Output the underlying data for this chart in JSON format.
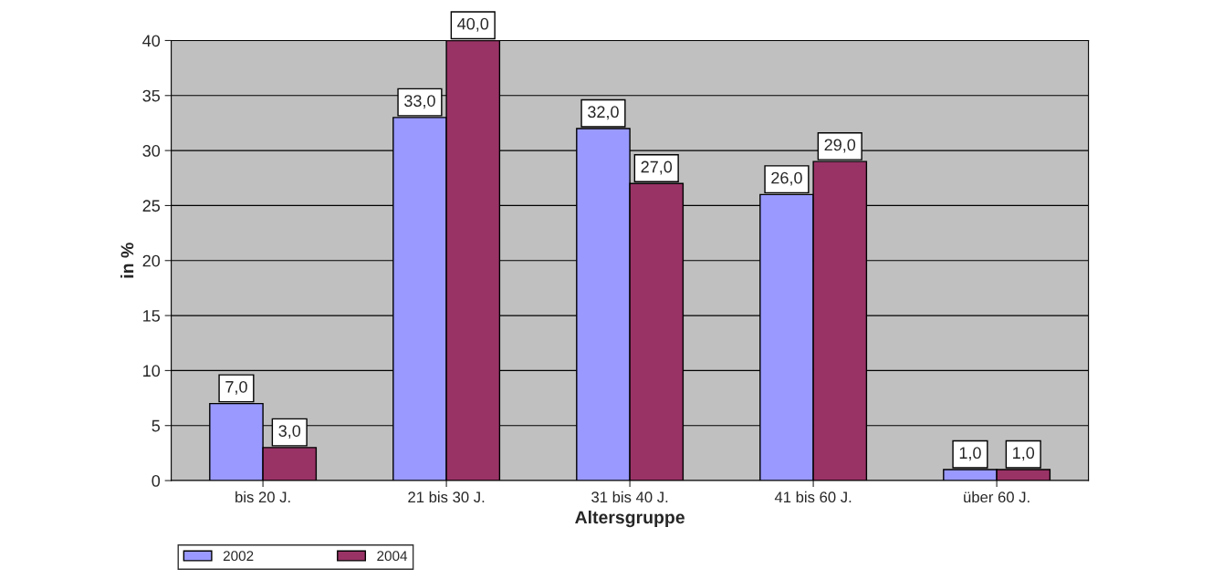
{
  "chart_data": {
    "type": "bar",
    "xlabel": "Altersgruppe",
    "ylabel": "in %",
    "categories": [
      "bis 20 J.",
      "21 bis 30 J.",
      "31 bis 40 J.",
      "41 bis 60 J.",
      "über 60 J."
    ],
    "series": [
      {
        "name": "2002",
        "color": "#9999ff",
        "values": [
          7,
          33,
          32,
          26,
          1
        ],
        "value_labels": [
          "7,0",
          "33,0",
          "32,0",
          "26,0",
          "1,0"
        ]
      },
      {
        "name": "2004",
        "color": "#993366",
        "values": [
          3,
          40,
          27,
          29,
          1
        ],
        "value_labels": [
          "3,0",
          "40,0",
          "27,0",
          "29,0",
          "1,0"
        ]
      }
    ],
    "ylim": [
      0,
      40
    ],
    "yticks": [
      0,
      5,
      10,
      15,
      20,
      25,
      30,
      35,
      40
    ],
    "grid": "y",
    "legend": "bottom left"
  }
}
